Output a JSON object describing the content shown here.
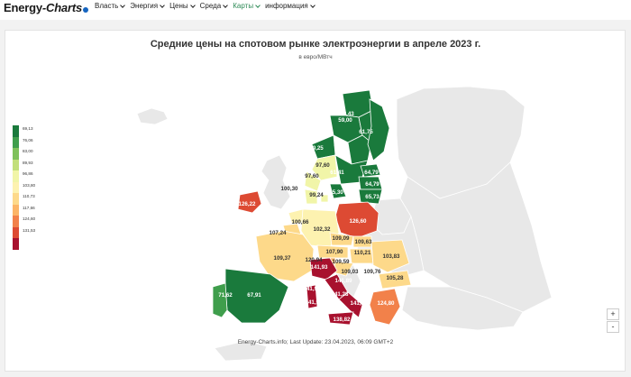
{
  "header": {
    "logo_energy": "Energy",
    "logo_charts": "-Charts",
    "nav": [
      {
        "label": "Власть",
        "active": false
      },
      {
        "label": "Энергия",
        "active": false
      },
      {
        "label": "Цены",
        "active": false
      },
      {
        "label": "Среда",
        "active": false
      },
      {
        "label": "Карты",
        "active": true
      },
      {
        "label": "информация",
        "active": false
      }
    ]
  },
  "map": {
    "title": "Средние цены на спотовом рынке электроэнергии в апреле 2023 г.",
    "subtitle": "в евро/МВтч",
    "footer": "Energy-Charts.info; Last Update: 23.04.2023, 06:09 GMT+2",
    "zoom_in": "+",
    "zoom_out": "-",
    "legend": [
      {
        "label": "69,13",
        "color": "#1a7a3c"
      },
      {
        "label": "76,06",
        "color": "#3f9e4c"
      },
      {
        "label": "83,00",
        "color": "#7fc15b"
      },
      {
        "label": "89,93",
        "color": "#c2df7a"
      },
      {
        "label": "96,86",
        "color": "#f1f5a8"
      },
      {
        "label": "103,80",
        "color": "#fdf2b0"
      },
      {
        "label": "110,73",
        "color": "#fdd98a"
      },
      {
        "label": "117,66",
        "color": "#fcb567"
      },
      {
        "label": "124,60",
        "color": "#f2814a"
      },
      {
        "label": "131,53",
        "color": "#dd4a33"
      },
      {
        "label": "",
        "color": "#a8112e"
      }
    ],
    "prices": [
      {
        "label": "32,43",
        "color": "#1a7a3c"
      },
      {
        "label": "59,00",
        "color": "#1a7a3c"
      },
      {
        "label": "59,00",
        "color": "#1a7a3c"
      },
      {
        "label": "49,25",
        "color": "#1a7a3c"
      },
      {
        "label": "61,75",
        "color": "#1a7a3c"
      },
      {
        "label": "97,60",
        "color": "#f1f5a8"
      },
      {
        "label": "97,60",
        "color": "#f1f5a8"
      },
      {
        "label": "61,41",
        "color": "#1a7a3c"
      },
      {
        "label": "64,79",
        "color": "#1a7a3c"
      },
      {
        "label": "64,79",
        "color": "#1a7a3c"
      },
      {
        "label": "65,30",
        "color": "#1a7a3c"
      },
      {
        "label": "65,73",
        "color": "#1a7a3c"
      },
      {
        "label": "100,30",
        "color": "#f1f5a8"
      },
      {
        "label": "99,24",
        "color": "#f1f5a8"
      },
      {
        "label": "126,22",
        "color": "#dd4a33"
      },
      {
        "label": "126,60",
        "color": "#dd4a33"
      },
      {
        "label": "100,66",
        "color": "#fdf2b0"
      },
      {
        "label": "102,32",
        "color": "#fdf2b0"
      },
      {
        "label": "107,24",
        "color": "#fdd98a"
      },
      {
        "label": "109,09",
        "color": "#fdd98a"
      },
      {
        "label": "109,63",
        "color": "#fdd98a"
      },
      {
        "label": "107,90",
        "color": "#fdd98a"
      },
      {
        "label": "110,21",
        "color": "#fdd98a"
      },
      {
        "label": "109,37",
        "color": "#fdd98a"
      },
      {
        "label": "120,94",
        "color": "#fcb567"
      },
      {
        "label": "109,59",
        "color": "#fdd98a"
      },
      {
        "label": "103,83",
        "color": "#fdd98a"
      },
      {
        "label": "141,93",
        "color": "#a8112e"
      },
      {
        "label": "109,03",
        "color": "#fdd98a"
      },
      {
        "label": "109,76",
        "color": "#fdd98a"
      },
      {
        "label": "105,28",
        "color": "#fdd98a"
      },
      {
        "label": "141,89",
        "color": "#a8112e"
      },
      {
        "label": "141,28",
        "color": "#a8112e"
      },
      {
        "label": "141,93",
        "color": "#a8112e"
      },
      {
        "label": "141,48",
        "color": "#a8112e"
      },
      {
        "label": "124,80",
        "color": "#f2814a"
      },
      {
        "label": "138,82",
        "color": "#a8112e"
      },
      {
        "label": "141,93",
        "color": "#a8112e"
      },
      {
        "label": "71,62",
        "color": "#3f9e4c"
      },
      {
        "label": "67,91",
        "color": "#1a7a3c"
      }
    ]
  }
}
